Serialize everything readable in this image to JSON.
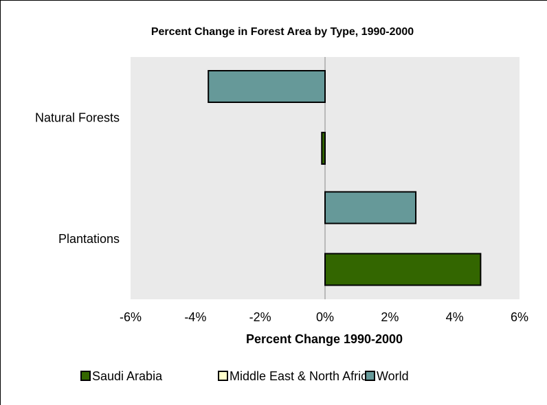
{
  "chart_data": {
    "type": "bar",
    "orientation": "horizontal",
    "title": "Percent Change in Forest Area by Type, 1990-2000",
    "xlabel": "Percent Change 1990-2000",
    "ylabel": "",
    "xlim": [
      -6,
      6
    ],
    "x_tick_values": [
      -6,
      -4,
      -2,
      0,
      2,
      4,
      6
    ],
    "x_tick_labels": [
      "-6%",
      "-4%",
      "-2%",
      "0%",
      "2%",
      "4%",
      "6%"
    ],
    "categories": [
      "Natural Forests",
      "Plantations"
    ],
    "series": [
      {
        "name": "Saudi Arabia",
        "color": "#336600",
        "values": [
          -0.1,
          4.8
        ]
      },
      {
        "name": "Middle East & North Africa",
        "color": "#ffffcc",
        "values": [
          0,
          0
        ]
      },
      {
        "name": "World",
        "color": "#669999",
        "values": [
          -3.6,
          2.8
        ]
      }
    ],
    "plot_background": "#eaeaea",
    "grid": false,
    "legend_position": "bottom"
  }
}
